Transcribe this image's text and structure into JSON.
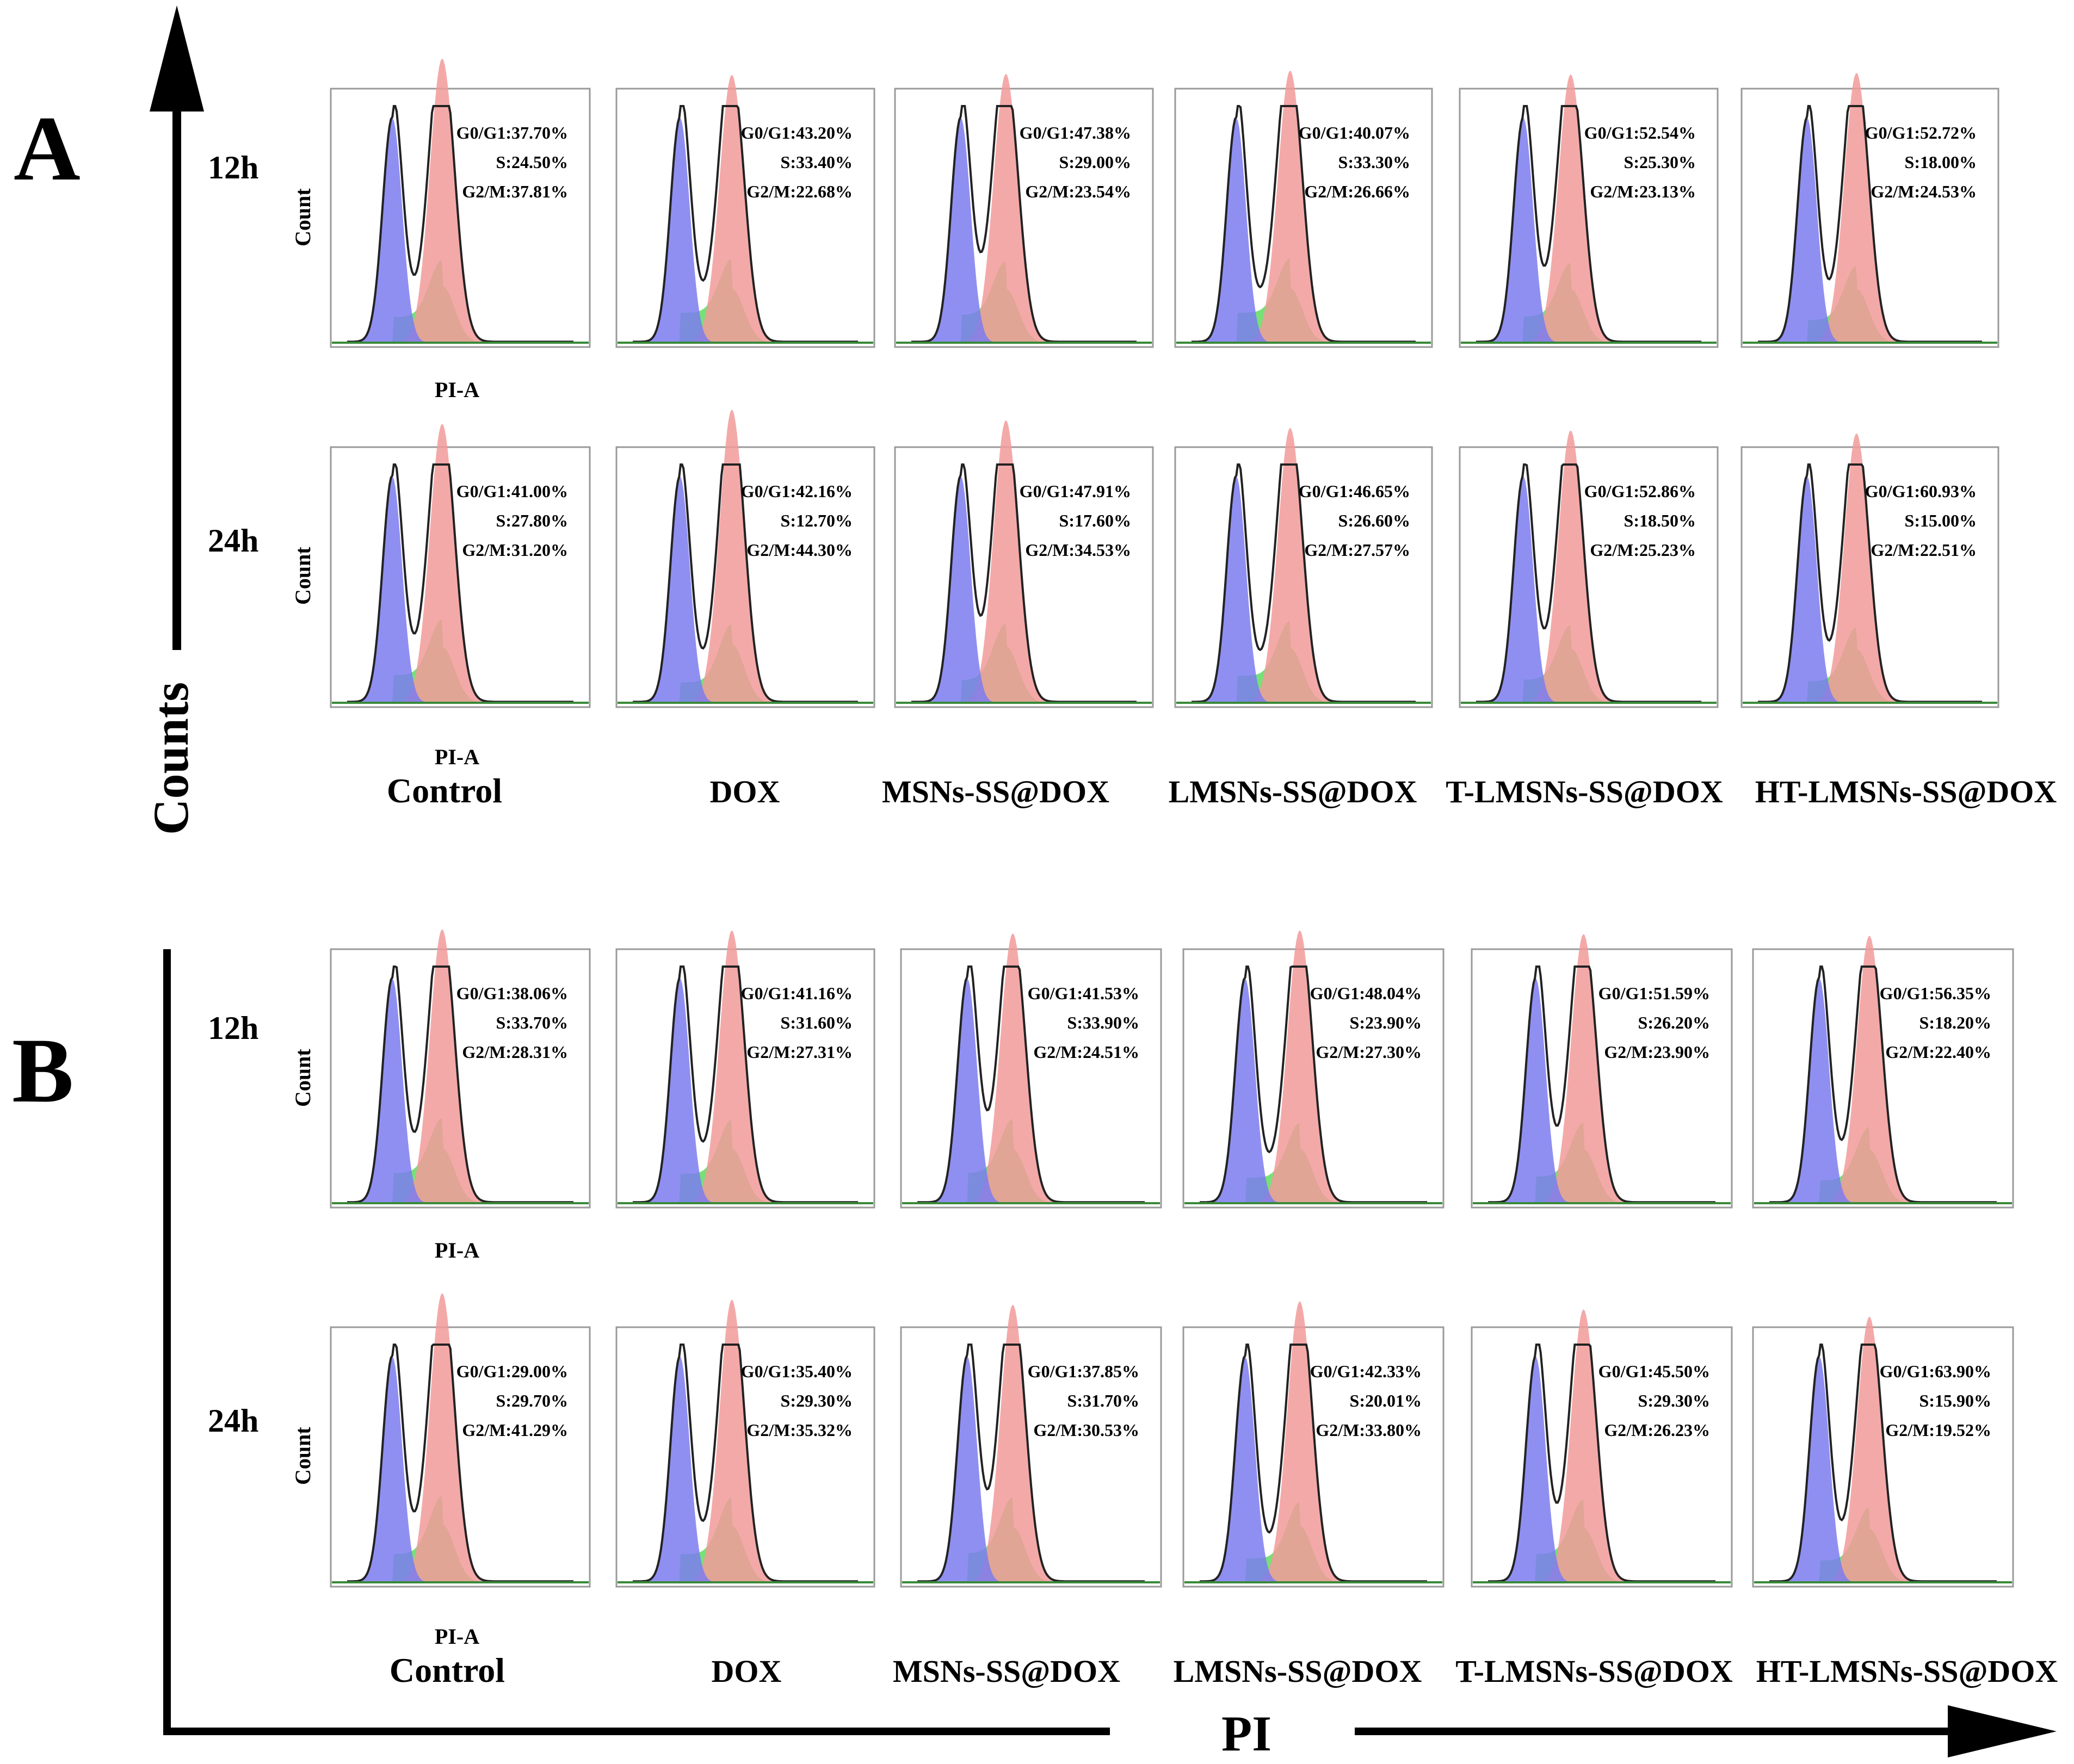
{
  "figure": {
    "axis_label_counts": "Counts",
    "axis_label_pi": "PI",
    "panel_a_label": "A",
    "panel_b_label": "B",
    "count_label": "Count",
    "pi_a_label": "PI-A"
  },
  "colors": {
    "g0g1": "#7b7bf0",
    "s": "#5fdc5f",
    "g2m": "#f29a9a",
    "outline": "#222222",
    "baseline": "#3a8a3a",
    "frame": "#9a9a9a"
  },
  "chart_data": [
    {
      "type": "histogram-grid",
      "panel": "A",
      "x_axis_label": "PI-A",
      "y_axis_label": "Count",
      "rows": [
        "12h",
        "24h"
      ],
      "conditions": [
        "Control",
        "DOX",
        "MSNs-SS@DOX",
        "LMSNs-SS@DOX",
        "T-LMSNs-SS@DOX",
        "HT-LMSNs-SS@DOX"
      ],
      "stats": [
        [
          {
            "g0g1": "G0/G1:37.70%",
            "s": "S:24.50%",
            "g2m": "G2/M:37.81%"
          },
          {
            "g0g1": "G0/G1:43.20%",
            "s": "S:33.40%",
            "g2m": "G2/M:22.68%"
          },
          {
            "g0g1": "G0/G1:47.38%",
            "s": "S:29.00%",
            "g2m": "G2/M:23.54%"
          },
          {
            "g0g1": "G0/G1:40.07%",
            "s": "S:33.30%",
            "g2m": "G2/M:26.66%"
          },
          {
            "g0g1": "G0/G1:52.54%",
            "s": "S:25.30%",
            "g2m": "G2/M:23.13%"
          },
          {
            "g0g1": "G0/G1:52.72%",
            "s": "S:18.00%",
            "g2m": "G2/M:24.53%"
          }
        ],
        [
          {
            "g0g1": "G0/G1:41.00%",
            "s": "S:27.80%",
            "g2m": "G2/M:31.20%"
          },
          {
            "g0g1": "G0/G1:42.16%",
            "s": "S:12.70%",
            "g2m": "G2/M:44.30%"
          },
          {
            "g0g1": "G0/G1:47.91%",
            "s": "S:17.60%",
            "g2m": "G2/M:34.53%"
          },
          {
            "g0g1": "G0/G1:46.65%",
            "s": "S:26.60%",
            "g2m": "G2/M:27.57%"
          },
          {
            "g0g1": "G0/G1:52.86%",
            "s": "S:18.50%",
            "g2m": "G2/M:25.23%"
          },
          {
            "g0g1": "G0/G1:60.93%",
            "s": "S:15.00%",
            "g2m": "G2/M:22.51%"
          }
        ]
      ]
    },
    {
      "type": "histogram-grid",
      "panel": "B",
      "x_axis_label": "PI-A",
      "y_axis_label": "Count",
      "rows": [
        "12h",
        "24h"
      ],
      "conditions": [
        "Control",
        "DOX",
        "MSNs-SS@DOX",
        "LMSNs-SS@DOX",
        "T-LMSNs-SS@DOX",
        "HT-LMSNs-SS@DOX"
      ],
      "stats": [
        [
          {
            "g0g1": "G0/G1:38.06%",
            "s": "S:33.70%",
            "g2m": "G2/M:28.31%"
          },
          {
            "g0g1": "G0/G1:41.16%",
            "s": "S:31.60%",
            "g2m": "G2/M:27.31%"
          },
          {
            "g0g1": "G0/G1:41.53%",
            "s": "S:33.90%",
            "g2m": "G2/M:24.51%"
          },
          {
            "g0g1": "G0/G1:48.04%",
            "s": "S:23.90%",
            "g2m": "G2/M:27.30%"
          },
          {
            "g0g1": "G0/G1:51.59%",
            "s": "S:26.20%",
            "g2m": "G2/M:23.90%"
          },
          {
            "g0g1": "G0/G1:56.35%",
            "s": "S:18.20%",
            "g2m": "G2/M:22.40%"
          }
        ],
        [
          {
            "g0g1": "G0/G1:29.00%",
            "s": "S:29.70%",
            "g2m": "G2/M:41.29%"
          },
          {
            "g0g1": "G0/G1:35.40%",
            "s": "S:29.30%",
            "g2m": "G2/M:35.32%"
          },
          {
            "g0g1": "G0/G1:37.85%",
            "s": "S:31.70%",
            "g2m": "G2/M:30.53%"
          },
          {
            "g0g1": "G0/G1:42.33%",
            "s": "S:20.01%",
            "g2m": "G2/M:33.80%"
          },
          {
            "g0g1": "G0/G1:45.50%",
            "s": "S:29.30%",
            "g2m": "G2/M:26.23%"
          },
          {
            "g0g1": "G0/G1:63.90%",
            "s": "S:15.90%",
            "g2m": "G2/M:19.52%"
          }
        ]
      ]
    }
  ]
}
